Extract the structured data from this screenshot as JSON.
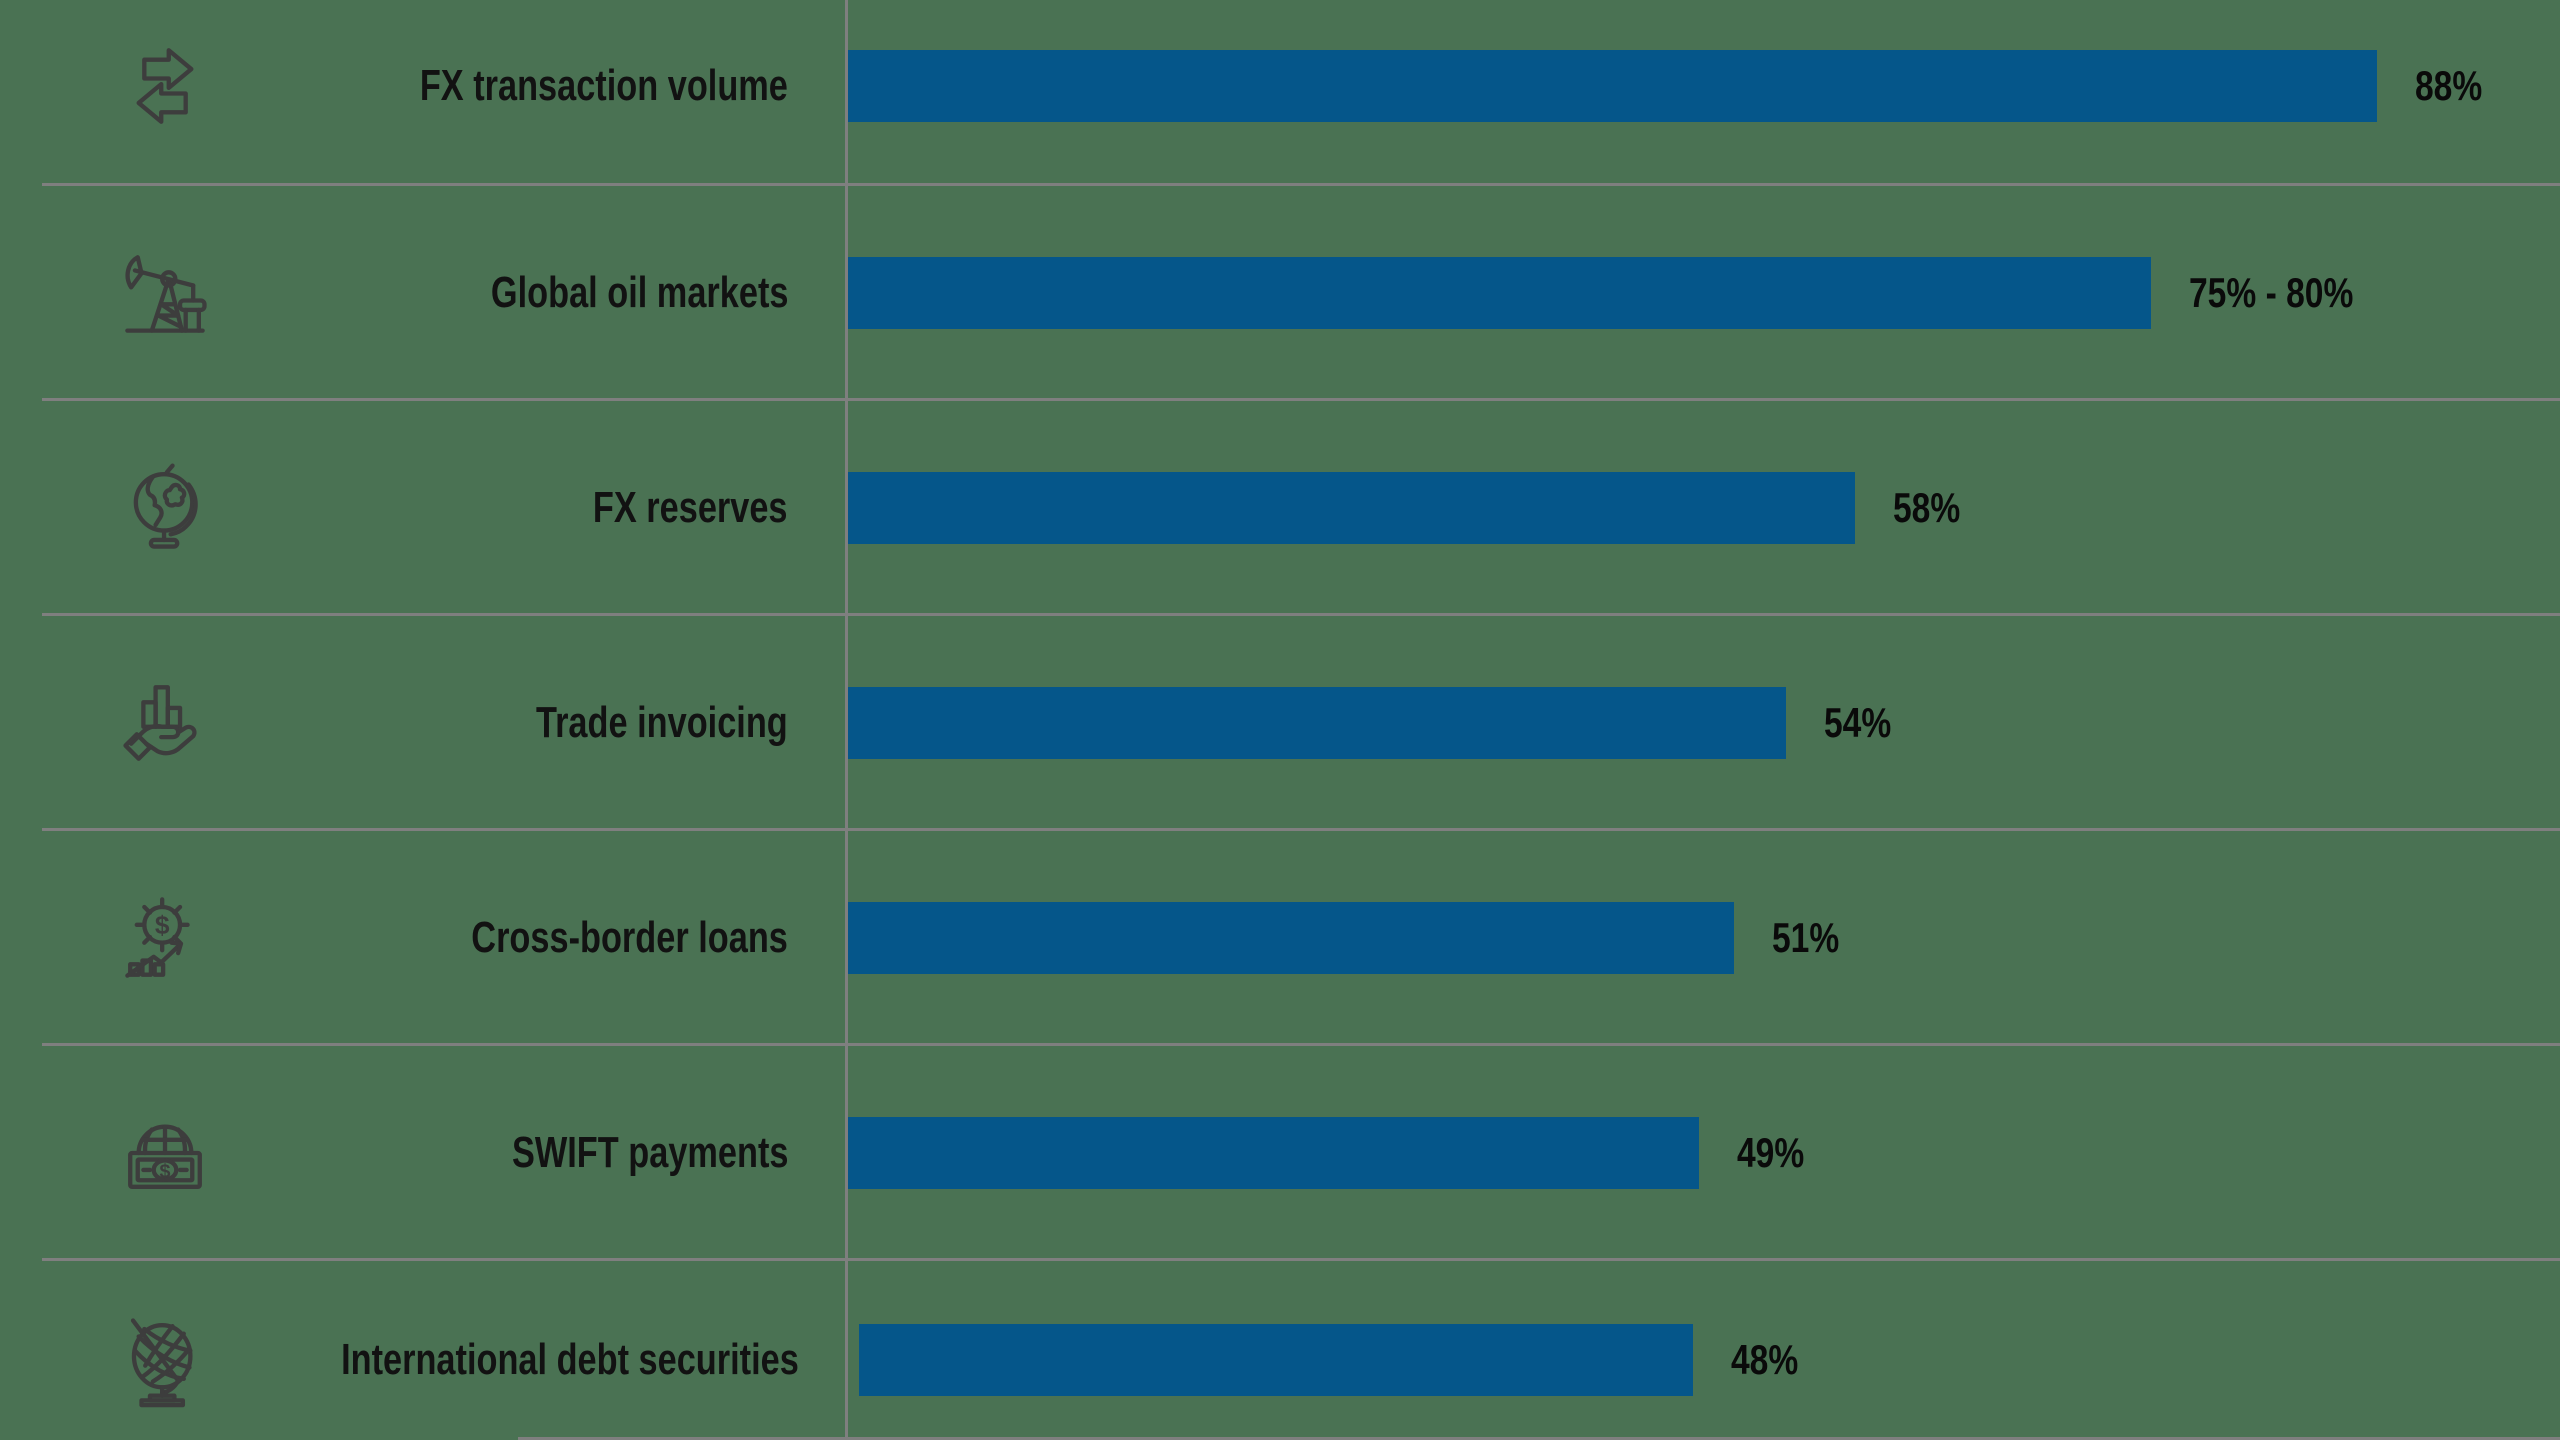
{
  "colors": {
    "background": "#4a7253",
    "bar": "#05568a",
    "separator": "#7f7f7f",
    "icon": "#3d3d3d",
    "label_text": "#121212",
    "value_text": "#0a0a0a"
  },
  "chart_data": {
    "type": "bar",
    "orientation": "horizontal",
    "title": "",
    "xlabel": "",
    "ylabel": "",
    "xlim": [
      0,
      100
    ],
    "grid": false,
    "legend": false,
    "categories": [
      "FX transaction volume",
      "Global oil markets",
      "FX reserves",
      "Trade invoicing",
      "Cross-border loans",
      "SWIFT payments",
      "International debt securities"
    ],
    "values": [
      88,
      75,
      58,
      54,
      51,
      49,
      48
    ],
    "value_labels": [
      "88%",
      "75% - 80%",
      "58%",
      "54%",
      "51%",
      "49%",
      "48%"
    ],
    "rows": [
      {
        "label": "FX transaction volume",
        "value": 88,
        "value_label": "88%",
        "icon": "exchange-arrows-icon"
      },
      {
        "label": "Global oil markets",
        "value": 75,
        "value_label": "75% - 80%",
        "icon": "oil-pump-icon"
      },
      {
        "label": "FX reserves",
        "value": 58,
        "value_label": "58%",
        "icon": "desk-globe-icon"
      },
      {
        "label": "Trade invoicing",
        "value": 54,
        "value_label": "54%",
        "icon": "hand-bar-chart-icon"
      },
      {
        "label": "Cross-border loans",
        "value": 51,
        "value_label": "51%",
        "icon": "gear-dollar-growth-icon"
      },
      {
        "label": "SWIFT payments",
        "value": 49,
        "value_label": "49%",
        "icon": "banknote-globe-icon"
      },
      {
        "label": "International debt securities",
        "value": 48,
        "value_label": "48%",
        "icon": "wireframe-globe-icon"
      }
    ],
    "dollar_glyph": "$"
  }
}
